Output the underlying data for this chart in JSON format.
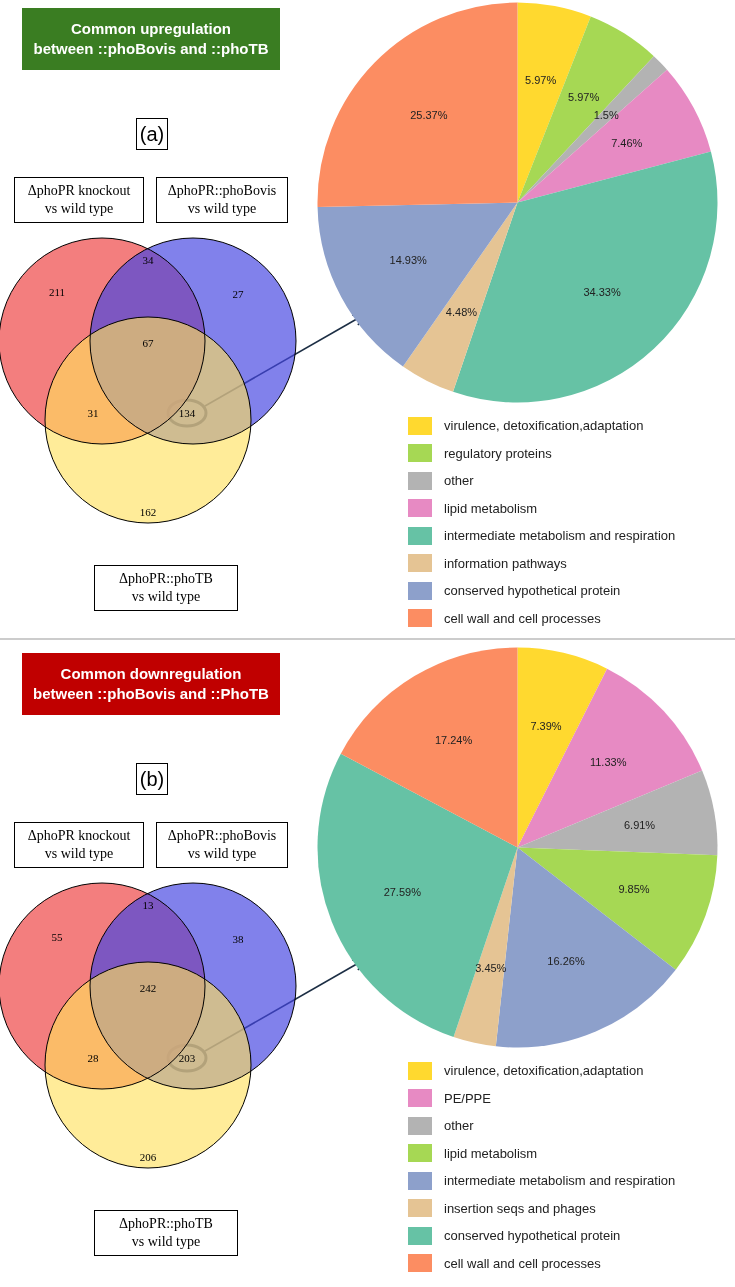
{
  "chart_data": [
    {
      "type": "other",
      "title": "Common upregulation\nbetween ::phoBovis and ::phoTB",
      "subtitle": "(a)",
      "annotations": [
        "ΔphoPR knockout\nvs wild type",
        "ΔphoPR::phoBovis\nvs wild type",
        "ΔphoPR::phoTB\nvs wild type",
        "211",
        "34",
        "27",
        "67",
        "31",
        "134",
        "162"
      ]
    },
    {
      "type": "pie",
      "legend": "bottom",
      "categories": [
        "virulence, detoxification,adaptation",
        "regulatory proteins",
        "other",
        "lipid metabolism",
        "intermediate metabolism and respiration",
        "information pathways",
        "conserved hypothetical protein",
        "cell wall and cell processes"
      ],
      "values": [
        5.97,
        5.97,
        1.5,
        7.46,
        34.33,
        4.48,
        14.93,
        25.37
      ],
      "value_labels": [
        "5.97%",
        "5.97%",
        "1.5%",
        "7.46%",
        "34.33%",
        "4.48%",
        "14.93%",
        "25.37%"
      ],
      "colors": [
        "#ffd92f",
        "#a6d854",
        "#b3b3b3",
        "#e78ac3",
        "#66c2a5",
        "#e5c494",
        "#8da0cb",
        "#fc8d62"
      ]
    },
    {
      "type": "other",
      "title": "Common downregulation\nbetween ::phoBovis and ::PhoTB",
      "subtitle": "(b)",
      "annotations": [
        "ΔphoPR knockout\nvs wild type",
        "ΔphoPR::phoBovis\nvs wild type",
        "ΔphoPR::phoTB\nvs wild type",
        "55",
        "13",
        "38",
        "242",
        "28",
        "203",
        "206"
      ]
    },
    {
      "type": "pie",
      "legend": "bottom",
      "categories": [
        "virulence, detoxification,adaptation",
        "PE/PPE",
        "other",
        "lipid metabolism",
        "intermediate metabolism and respiration",
        "insertion seqs and phages",
        "conserved hypothetical protein",
        "cell wall and cell processes"
      ],
      "values": [
        7.39,
        11.33,
        6.91,
        9.85,
        16.26,
        3.45,
        27.59,
        17.24
      ],
      "value_labels": [
        "7.39%",
        "11.33%",
        "6.91%",
        "9.85%",
        "16.26%",
        "3.45%",
        "27.59%",
        "17.24%"
      ],
      "colors": [
        "#ffd92f",
        "#e78ac3",
        "#b3b3b3",
        "#a6d854",
        "#8da0cb",
        "#e5c494",
        "#66c2a5",
        "#fc8d62"
      ]
    }
  ]
}
